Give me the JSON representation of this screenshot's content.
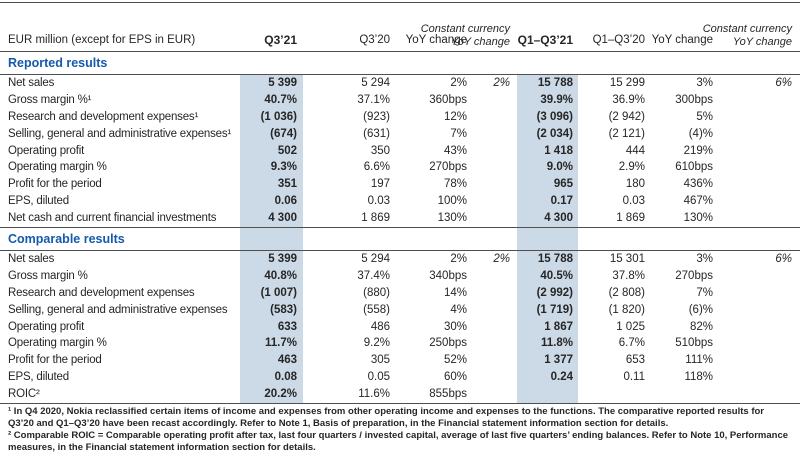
{
  "colors": {
    "accent_blue": "#155aab",
    "column_highlight": "#ccd9e6",
    "rule_line": "#4f4f4f",
    "text": "#262626"
  },
  "table": {
    "header": {
      "label": "EUR million (except for EPS in EUR)",
      "columns": [
        "Q3’21",
        "Q3’20",
        "YoY change",
        "Constant currency YoY change",
        "Q1–Q3’21",
        "Q1–Q3’20",
        "YoY change",
        "Constant currency YoY change"
      ]
    },
    "sections": [
      {
        "title": "Reported results",
        "rows": [
          {
            "label": "Net sales",
            "values": [
              "5 399",
              "5 294",
              "2%",
              "2%",
              "15 788",
              "15 299",
              "3%",
              "6%"
            ]
          },
          {
            "label": "Gross margin %¹",
            "values": [
              "40.7%",
              "37.1%",
              "360bps",
              "",
              "39.9%",
              "36.9%",
              "300bps",
              ""
            ]
          },
          {
            "label": "Research and development expenses¹",
            "values": [
              "(1 036)",
              "(923)",
              "12%",
              "",
              "(3 096)",
              "(2 942)",
              "5%",
              ""
            ]
          },
          {
            "label": "Selling, general and administrative expenses¹",
            "values": [
              "(674)",
              "(631)",
              "7%",
              "",
              "(2 034)",
              "(2 121)",
              "(4)%",
              ""
            ]
          },
          {
            "label": "Operating profit",
            "values": [
              "502",
              "350",
              "43%",
              "",
              "1 418",
              "444",
              "219%",
              ""
            ]
          },
          {
            "label": "Operating margin %",
            "values": [
              "9.3%",
              "6.6%",
              "270bps",
              "",
              "9.0%",
              "2.9%",
              "610bps",
              ""
            ]
          },
          {
            "label": "Profit for the period",
            "values": [
              "351",
              "197",
              "78%",
              "",
              "965",
              "180",
              "436%",
              ""
            ]
          },
          {
            "label": "EPS, diluted",
            "values": [
              "0.06",
              "0.03",
              "100%",
              "",
              "0.17",
              "0.03",
              "467%",
              ""
            ]
          },
          {
            "label": "Net cash and current financial investments",
            "values": [
              "4 300",
              "1 869",
              "130%",
              "",
              "4 300",
              "1 869",
              "130%",
              ""
            ]
          }
        ]
      },
      {
        "title": "Comparable results",
        "rows": [
          {
            "label": "Net sales",
            "values": [
              "5 399",
              "5 294",
              "2%",
              "2%",
              "15 788",
              "15 301",
              "3%",
              "6%"
            ]
          },
          {
            "label": "Gross margin %",
            "values": [
              "40.8%",
              "37.4%",
              "340bps",
              "",
              "40.5%",
              "37.8%",
              "270bps",
              ""
            ]
          },
          {
            "label": "Research and development expenses",
            "values": [
              "(1 007)",
              "(880)",
              "14%",
              "",
              "(2 992)",
              "(2 808)",
              "7%",
              ""
            ]
          },
          {
            "label": "Selling, general and administrative expenses",
            "values": [
              "(583)",
              "(558)",
              "4%",
              "",
              "(1 719)",
              "(1 820)",
              "(6)%",
              ""
            ]
          },
          {
            "label": "Operating profit",
            "values": [
              "633",
              "486",
              "30%",
              "",
              "1 867",
              "1 025",
              "82%",
              ""
            ]
          },
          {
            "label": "Operating margin %",
            "values": [
              "11.7%",
              "9.2%",
              "250bps",
              "",
              "11.8%",
              "6.7%",
              "510bps",
              ""
            ]
          },
          {
            "label": "Profit for the period",
            "values": [
              "463",
              "305",
              "52%",
              "",
              "1 377",
              "653",
              "111%",
              ""
            ]
          },
          {
            "label": "EPS, diluted",
            "values": [
              "0.08",
              "0.05",
              "60%",
              "",
              "0.24",
              "0.11",
              "118%",
              ""
            ]
          },
          {
            "label": "ROIC²",
            "values": [
              "20.2%",
              "11.6%",
              "855bps",
              "",
              "",
              "",
              "",
              ""
            ]
          }
        ]
      }
    ],
    "footnotes": [
      "¹ In Q4 2020, Nokia reclassified certain items of income and expenses from other operating income and expenses to the functions. The comparative reported results for Q3’20 and Q1–Q3’20 have been recast accordingly. Refer to Note 1, Basis of preparation, in the Financial statement information section for details.",
      "² Comparable ROIC = Comparable operating profit after tax, last four quarters / invested capital, average of last five quarters’ ending balances. Refer to Note 10, Performance measures, in the Financial statement information section for details."
    ]
  }
}
